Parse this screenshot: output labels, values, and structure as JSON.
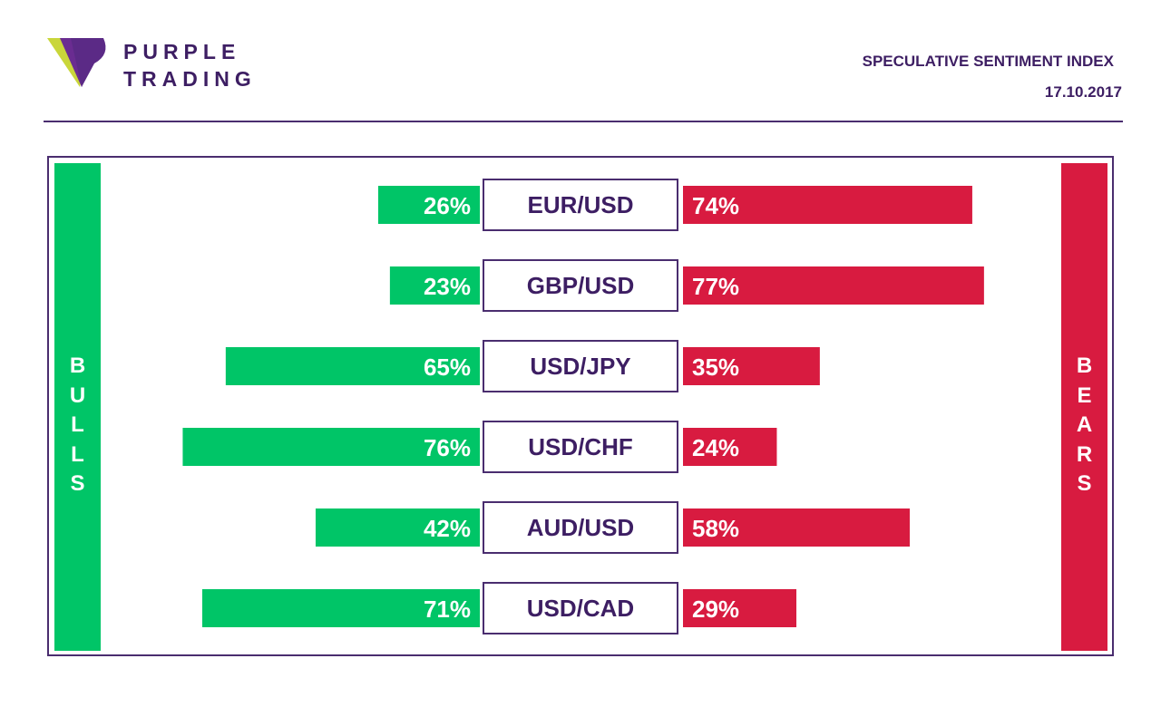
{
  "brand": {
    "line1": "PURPLE",
    "line2": "TRADING"
  },
  "header": {
    "title": "SPECULATIVE SENTIMENT INDEX",
    "date": "17.10.2017"
  },
  "labels": {
    "bulls": "BULLS",
    "bears": "BEARS"
  },
  "colors": {
    "bulls": "#00c567",
    "bears": "#d81b40",
    "brand": "#3d1e63"
  },
  "chart_data": {
    "type": "bar",
    "categories": [
      "EUR/USD",
      "GBP/USD",
      "USD/JPY",
      "USD/CHF",
      "AUD/USD",
      "USD/CAD"
    ],
    "series": [
      {
        "name": "BULLS",
        "values": [
          26,
          23,
          65,
          76,
          42,
          71
        ],
        "labels": [
          "26%",
          "23%",
          "65%",
          "76%",
          "42%",
          "71%"
        ]
      },
      {
        "name": "BEARS",
        "values": [
          74,
          77,
          35,
          24,
          58,
          29
        ],
        "labels": [
          "74%",
          "77%",
          "35%",
          "24%",
          "58%",
          "29%"
        ]
      }
    ],
    "xlim": [
      0,
      100
    ]
  }
}
